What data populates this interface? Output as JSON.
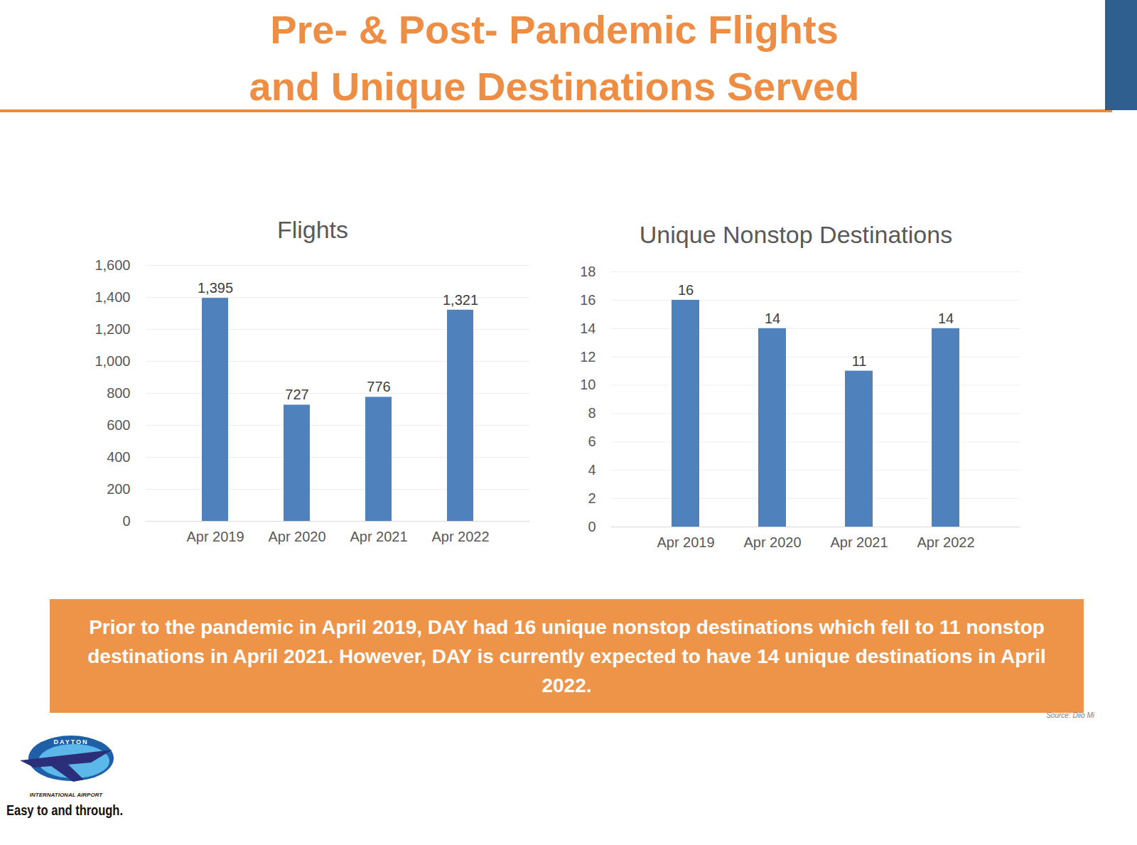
{
  "page": {
    "title_lines": [
      "Pre- & Post- Pandemic Flights",
      "and Unique Destinations Served"
    ],
    "caption": "Prior to the pandemic in April 2019, DAY had 16 unique nonstop destinations which fell to 11 nonstop destinations in April 2021. However, DAY is currently expected to have 14 unique destinations in April 2022.",
    "source": "Source: Diio Mi",
    "logo_top": "DAYTON",
    "logo_middle": "INTERNATIONAL AIRPORT",
    "logo_tagline": "Easy to and through."
  },
  "chart_data": [
    {
      "type": "bar",
      "title": "Flights",
      "categories": [
        "Apr 2019",
        "Apr 2020",
        "Apr 2021",
        "Apr 2022"
      ],
      "values": [
        1395,
        727,
        776,
        1321
      ],
      "value_labels": [
        "1,395",
        "727",
        "776",
        "1,321"
      ],
      "color": "#4F81BD",
      "ylim": [
        0,
        1600
      ],
      "yticks": [
        0,
        200,
        400,
        600,
        800,
        {
          "value": 1000,
          "label": "1,000"
        },
        {
          "value": 1200,
          "label": "1,200"
        },
        {
          "value": 1400,
          "label": "1,400"
        },
        {
          "value": 1600,
          "label": "1,600"
        }
      ],
      "grid": true,
      "data_labels": true
    },
    {
      "type": "bar",
      "title": "Unique Nonstop Destinations",
      "categories": [
        "Apr 2019",
        "Apr 2020",
        "Apr 2021",
        "Apr 2022"
      ],
      "values": [
        16,
        14,
        11,
        14
      ],
      "color": "#4F81BD",
      "ylim": [
        0,
        18
      ],
      "yticks": [
        0,
        2,
        4,
        6,
        8,
        10,
        12,
        14,
        16,
        18
      ],
      "grid": true,
      "data_labels": true
    }
  ]
}
